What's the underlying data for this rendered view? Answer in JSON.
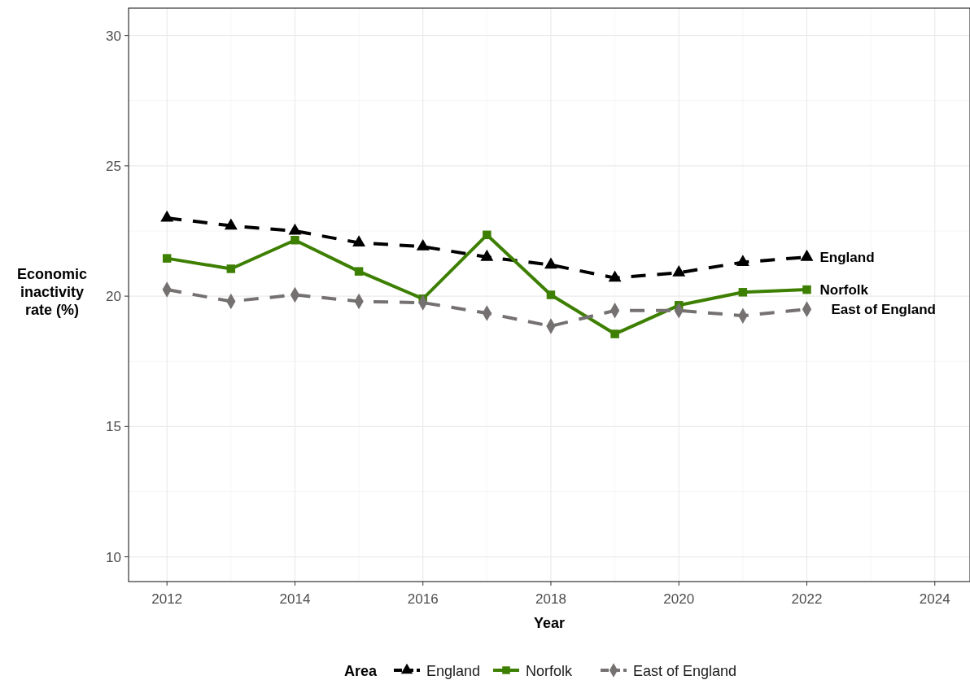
{
  "chart_data": {
    "type": "line",
    "xlabel": "Year",
    "ylabel": "Economic inactivity rate (%)",
    "legend_title": "Area",
    "legend": "bottom",
    "grid": true,
    "x": [
      2012,
      2013,
      2014,
      2015,
      2016,
      2017,
      2018,
      2019,
      2020,
      2021,
      2022
    ],
    "xlim": [
      2011.4,
      2024.55
    ],
    "xticks": [
      2012,
      2014,
      2016,
      2018,
      2020,
      2022,
      2024
    ],
    "ylim": [
      9.05,
      31.05
    ],
    "yticks": [
      10,
      15,
      20,
      25,
      30
    ],
    "series": [
      {
        "name": "England",
        "color": "#000000",
        "marker": "triangle",
        "line_style": "dashed",
        "values": [
          23.0,
          22.7,
          22.5,
          22.05,
          21.9,
          21.5,
          21.2,
          20.7,
          20.9,
          21.3,
          21.5
        ]
      },
      {
        "name": "Norfolk",
        "color": "#3d7f00",
        "marker": "square",
        "line_style": "solid",
        "values": [
          21.45,
          21.05,
          22.15,
          20.95,
          19.9,
          22.35,
          20.05,
          18.55,
          19.65,
          20.15,
          20.25
        ]
      },
      {
        "name": "East of England",
        "color": "#757171",
        "marker": "diamond",
        "line_style": "dashed",
        "values": [
          20.25,
          19.8,
          20.05,
          19.8,
          19.75,
          19.35,
          18.85,
          19.45,
          19.45,
          19.25,
          19.5
        ]
      }
    ]
  }
}
